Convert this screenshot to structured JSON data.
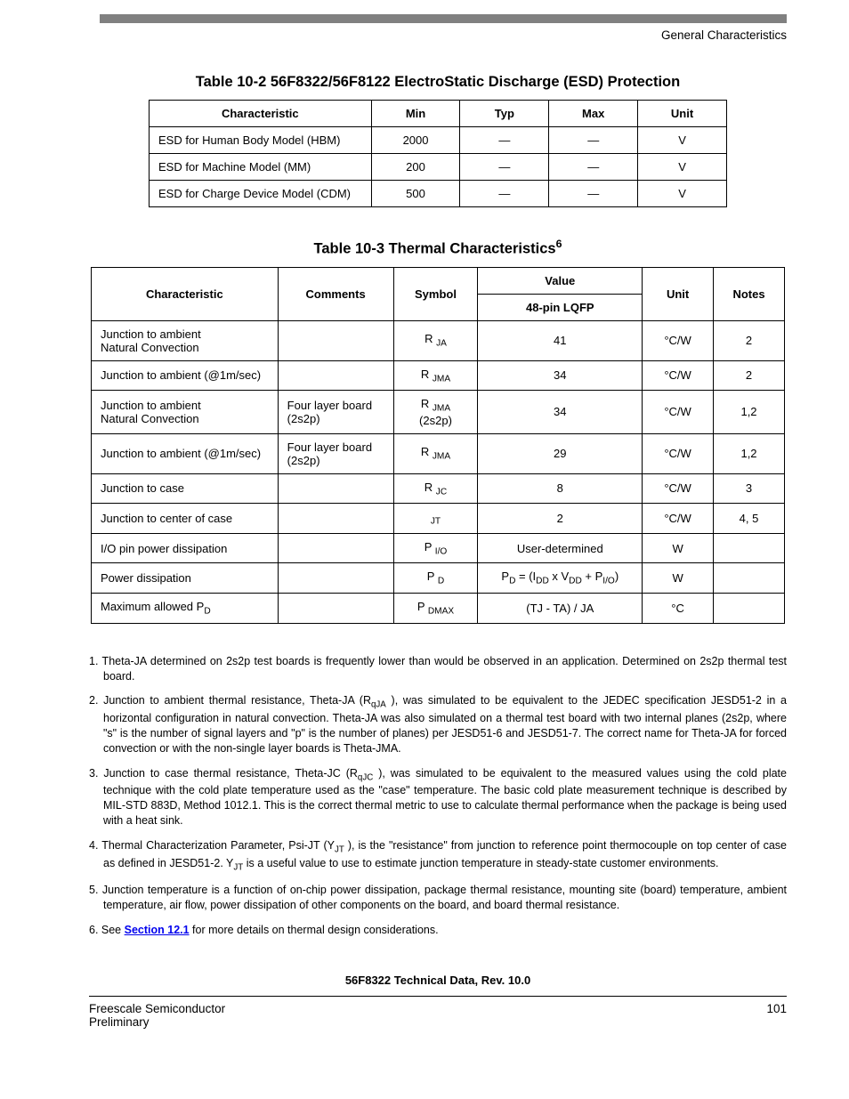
{
  "header": {
    "section_label": "General Characteristics"
  },
  "table1": {
    "title": "Table 10-2 56F8322/56F8122 ElectroStatic Discharge (ESD) Protection",
    "headers": [
      "Characteristic",
      "Min",
      "Typ",
      "Max",
      "Unit"
    ],
    "rows": [
      {
        "char": "ESD for Human Body Model (HBM)",
        "min": "2000",
        "typ": "—",
        "max": "—",
        "unit": "V"
      },
      {
        "char": "ESD for Machine Model (MM)",
        "min": "200",
        "typ": "—",
        "max": "—",
        "unit": "V"
      },
      {
        "char": "ESD for Charge Device Model (CDM)",
        "min": "500",
        "typ": "—",
        "max": "—",
        "unit": "V"
      }
    ]
  },
  "table2": {
    "title_pre": "Table 10-3 Thermal Characteristics",
    "title_sup": "6",
    "headers": {
      "characteristic": "Characteristic",
      "comments": "Comments",
      "symbol": "Symbol",
      "value": "Value",
      "value_sub": "48-pin LQFP",
      "unit": "Unit",
      "notes": "Notes"
    },
    "rows": [
      {
        "char_l1": "Junction to ambient",
        "char_l2": "Natural Convection",
        "comments": "",
        "sym_main": "R",
        "sym_sub": "JA",
        "sym_l2": "",
        "value": "41",
        "unit": "°C/W",
        "notes": "2"
      },
      {
        "char_l1": "Junction to ambient (@1m/sec)",
        "char_l2": "",
        "comments": "",
        "sym_main": "R",
        "sym_sub": "JMA",
        "sym_l2": "",
        "value": "34",
        "unit": "°C/W",
        "notes": "2"
      },
      {
        "char_l1": "Junction to ambient",
        "char_l2": "Natural Convection",
        "comments": "Four layer board (2s2p)",
        "sym_main": "R",
        "sym_sub": "JMA",
        "sym_l2": "(2s2p)",
        "value": "34",
        "unit": "°C/W",
        "notes": "1,2"
      },
      {
        "char_l1": "Junction to ambient (@1m/sec)",
        "char_l2": "",
        "comments": "Four layer board (2s2p)",
        "sym_main": "R",
        "sym_sub": "JMA",
        "sym_l2": "",
        "value": "29",
        "unit": "°C/W",
        "notes": "1,2"
      },
      {
        "char_l1": "Junction to case",
        "char_l2": "",
        "comments": "",
        "sym_main": "R",
        "sym_sub": "JC",
        "sym_l2": "",
        "value": "8",
        "unit": "°C/W",
        "notes": "3"
      },
      {
        "char_l1": "Junction to center of case",
        "char_l2": "",
        "comments": "",
        "sym_main": "",
        "sym_sub": "JT",
        "sym_l2": "",
        "value": "2",
        "unit": "°C/W",
        "notes": "4, 5"
      },
      {
        "char_l1": "I/O pin power dissipation",
        "char_l2": "",
        "comments": "",
        "sym_main": "P",
        "sym_sub": "I/O",
        "sym_l2": "",
        "value": "User-determined",
        "unit": "W",
        "notes": ""
      },
      {
        "char_l1": "Power dissipation",
        "char_l2": "",
        "comments": "",
        "sym_main": "P",
        "sym_sub": "D",
        "sym_l2": "",
        "value_html": "pd_formula",
        "unit": "W",
        "notes": ""
      },
      {
        "char_html": "max_pd",
        "comments": "",
        "sym_main": "P",
        "sym_sub": "DMAX",
        "sym_l2": "",
        "value": "(TJ - TA) /   JA",
        "unit": "°C",
        "notes": ""
      }
    ],
    "special": {
      "pd_formula_pre": "P",
      "pd_formula_sub1": "D",
      "pd_formula_mid": " = (I",
      "pd_formula_sub2": "DD",
      "pd_formula_mid2": " x V",
      "pd_formula_sub3": "DD",
      "pd_formula_mid3": " + P",
      "pd_formula_sub4": "I/O",
      "pd_formula_end": ")",
      "max_pd_pre": "Maximum allowed P",
      "max_pd_sub": "D"
    }
  },
  "footnotes": {
    "n1": "1. Theta-JA determined on 2s2p test boards is frequently lower than would be observed in an application. Determined on 2s2p thermal test board.",
    "n2_pre": "2. Junction to ambient thermal resistance, Theta-JA (R",
    "n2_sub": "qJA",
    "n2_post": " ), was simulated to be equivalent to the JEDEC specification JESD51-2 in a horizontal configuration in natural convection. Theta-JA was also simulated on a thermal test board with two internal planes (2s2p, where \"s\" is the number of signal layers and \"p\" is the number of planes) per JESD51-6 and JESD51-7. The correct name for Theta-JA for forced convection or with the non-single layer boards is Theta-JMA.",
    "n3_pre": "3. Junction to case thermal resistance, Theta-JC (R",
    "n3_sub": "qJC",
    "n3_post": " ), was simulated to be equivalent to the measured values using the cold plate technique with the cold plate temperature used as the \"case\" temperature. The basic cold plate measurement technique is described by MIL-STD 883D, Method 1012.1. This is the correct thermal metric to use to calculate thermal performance when the package is being used with a heat sink.",
    "n4_pre": "4. Thermal Characterization Parameter, Psi-JT (Y",
    "n4_sub1": "JT",
    "n4_mid": " ), is the \"resistance\" from junction to reference point thermocouple on top center of case as defined in JESD51-2. Y",
    "n4_sub2": "JT",
    "n4_post": " is a useful value to use to estimate junction temperature in steady-state customer environments.",
    "n5": "5. Junction temperature is a function of on-chip power dissipation, package thermal resistance, mounting site (board) temperature, ambient temperature, air flow, power dissipation of other components on the board, and board thermal resistance.",
    "n6_pre": "6. See ",
    "n6_link": "Section 12.1",
    "n6_post": "  for more details on thermal design considerations."
  },
  "footer": {
    "doc_title": "56F8322 Technical Data, Rev. 10.0",
    "company": "Freescale Semiconductor",
    "status": "Preliminary",
    "page": "101"
  }
}
